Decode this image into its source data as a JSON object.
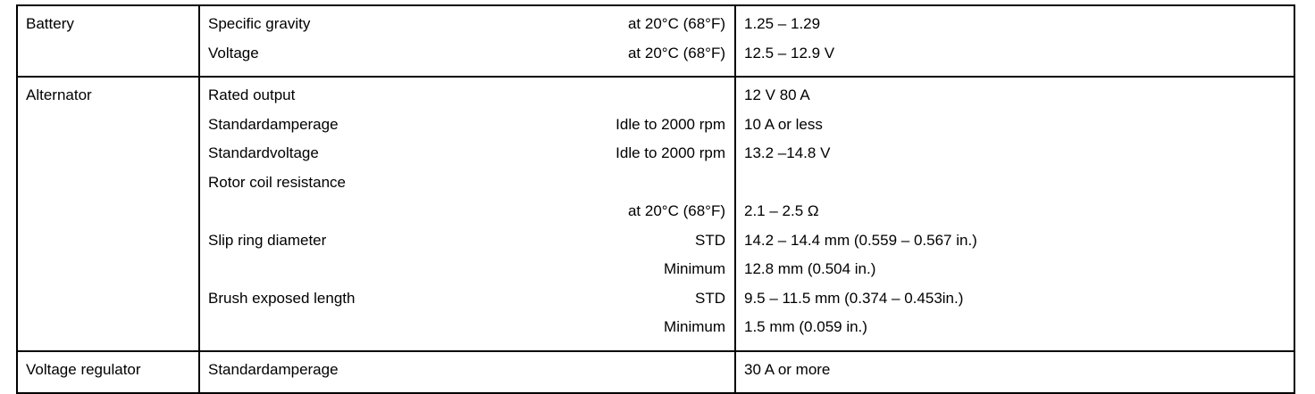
{
  "table": {
    "sections": [
      {
        "label": "Battery",
        "rows": [
          {
            "item": "Specific gravity",
            "condition": "at 20°C (68°F)",
            "value": "1.25 – 1.29"
          },
          {
            "item": "Voltage",
            "condition": "at 20°C (68°F)",
            "value": "12.5 – 12.9 V"
          }
        ]
      },
      {
        "label": "Alternator",
        "rows": [
          {
            "item": "Rated output",
            "value": "12 V  80 A"
          },
          {
            "item": "Standardamperage",
            "condition": "Idle to 2000 rpm",
            "value": "10 A or less"
          },
          {
            "item": "Standardvoltage",
            "condition": "Idle to 2000 rpm",
            "value": "13.2 –14.8 V"
          },
          {
            "item": "Rotor coil resistance"
          },
          {
            "condition": "at 20°C (68°F)",
            "value": "2.1 – 2.5 Ω"
          },
          {
            "item": "Slip ring diameter",
            "condition": "STD",
            "value": "14.2 – 14.4 mm (0.559 – 0.567 in.)"
          },
          {
            "condition": "Minimum",
            "value": "12.8 mm (0.504 in.)"
          },
          {
            "item": "Brush exposed length",
            "condition": "STD",
            "value": "9.5 – 11.5 mm (0.374 – 0.453in.)"
          },
          {
            "condition": "Minimum",
            "value": "1.5 mm (0.059 in.)"
          }
        ]
      },
      {
        "label": "Voltage regulator",
        "rows": [
          {
            "item": "Standardamperage",
            "value": "30 A or more"
          }
        ]
      }
    ]
  }
}
